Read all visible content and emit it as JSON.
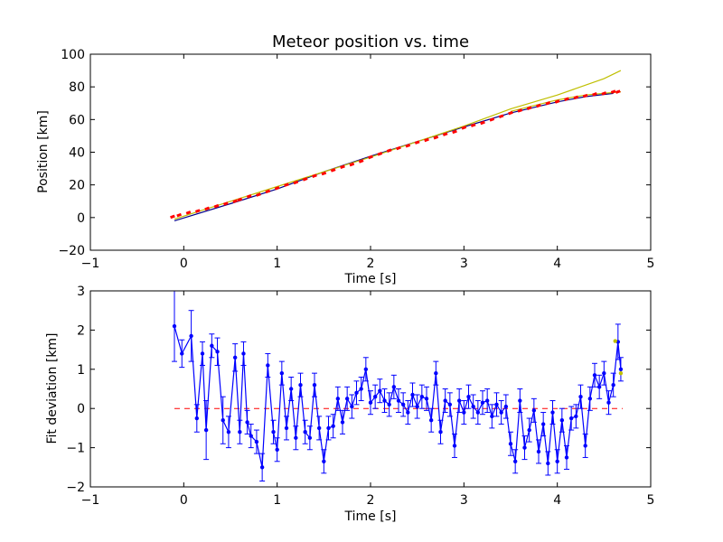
{
  "colors": {
    "fit_line": "#00008b",
    "data_marker": "#ff0000",
    "model_line": "#bfbf00",
    "residual_line": "#0000ff",
    "zero_line": "#ff0000",
    "axes": "#000000"
  },
  "chart_data": [
    {
      "type": "line",
      "title": "Meteor position vs. time",
      "xlabel": "Time [s]",
      "ylabel": "Position [km]",
      "xlim": [
        -1,
        5
      ],
      "ylim": [
        -20,
        100
      ],
      "xticks": [
        "−1",
        "0",
        "1",
        "2",
        "3",
        "4",
        "5"
      ],
      "yticks": [
        "−20",
        "0",
        "20",
        "40",
        "60",
        "80",
        "100"
      ],
      "grid": false,
      "series": [
        {
          "name": "",
          "kind": "line",
          "color": "#00008b",
          "x": [
            -0.1,
            0.5,
            1.0,
            1.5,
            2.0,
            2.5,
            3.0,
            3.5,
            4.0,
            4.3,
            4.6
          ],
          "y": [
            -2,
            8.5,
            17.5,
            28,
            37.5,
            46.5,
            55.5,
            64,
            70.8,
            74,
            76
          ]
        },
        {
          "name": "",
          "kind": "line",
          "color": "#bfbf00",
          "x": [
            -0.1,
            1.0,
            2.0,
            3.0,
            3.5,
            4.0,
            4.5,
            4.68
          ],
          "y": [
            -1,
            19,
            37,
            56,
            66.5,
            75,
            85,
            90
          ]
        },
        {
          "name": "",
          "kind": "line",
          "color": "#bfbf00",
          "x": [
            3.5,
            4.0,
            4.3,
            4.68
          ],
          "y": [
            65,
            72,
            75,
            77
          ]
        },
        {
          "name": "",
          "kind": "markers",
          "color": "#ff0000",
          "x": [
            -0.12,
            -0.05,
            0.05,
            0.15,
            0.25,
            0.35,
            0.45,
            0.55,
            0.6,
            0.7,
            0.8,
            0.9,
            1.0,
            1.1,
            1.2,
            1.3,
            1.4,
            1.5,
            1.6,
            1.7,
            1.8,
            1.9,
            2.0,
            2.1,
            2.2,
            2.3,
            2.4,
            2.5,
            2.6,
            2.7,
            2.8,
            2.9,
            3.0,
            3.1,
            3.2,
            3.3,
            3.4,
            3.5,
            3.6,
            3.7,
            3.8,
            3.9,
            4.0,
            4.1,
            4.2,
            4.3,
            4.4,
            4.5,
            4.6,
            4.65
          ],
          "y": [
            0.5,
            1.5,
            3,
            4,
            5.5,
            7,
            8.5,
            10,
            11,
            13,
            14,
            16,
            18,
            20,
            21.5,
            23.5,
            25.5,
            27,
            29,
            31,
            32.5,
            34.5,
            37,
            39,
            41,
            42.5,
            44,
            46,
            47.5,
            49,
            51,
            52.5,
            55,
            56.5,
            58,
            60,
            62,
            64,
            65.5,
            67,
            68.5,
            70,
            71,
            72.5,
            73.5,
            74.5,
            75.5,
            76,
            77,
            77
          ]
        }
      ]
    },
    {
      "type": "line",
      "title": "",
      "xlabel": "Time [s]",
      "ylabel": "Fit deviation [km]",
      "xlim": [
        -1,
        5
      ],
      "ylim": [
        -2,
        3
      ],
      "xticks": [
        "−1",
        "0",
        "1",
        "2",
        "3",
        "4",
        "5"
      ],
      "yticks": [
        "−2",
        "−1",
        "0",
        "1",
        "2",
        "3"
      ],
      "grid": false,
      "zero_line": {
        "x": [
          -0.1,
          4.7
        ],
        "y": 0,
        "color": "#ff0000",
        "style": "dashed"
      },
      "series": [
        {
          "name": "",
          "kind": "errorbar",
          "color": "#0000ff",
          "x": [
            -0.1,
            -0.02,
            0.08,
            0.14,
            0.2,
            0.24,
            0.3,
            0.36,
            0.42,
            0.48,
            0.55,
            0.6,
            0.64,
            0.68,
            0.72,
            0.78,
            0.84,
            0.9,
            0.96,
            1.0,
            1.05,
            1.1,
            1.15,
            1.2,
            1.25,
            1.3,
            1.35,
            1.4,
            1.45,
            1.5,
            1.55,
            1.6,
            1.65,
            1.7,
            1.75,
            1.8,
            1.85,
            1.9,
            1.95,
            2.0,
            2.05,
            2.1,
            2.15,
            2.2,
            2.25,
            2.3,
            2.35,
            2.4,
            2.45,
            2.5,
            2.55,
            2.6,
            2.65,
            2.7,
            2.75,
            2.8,
            2.85,
            2.9,
            2.95,
            3.0,
            3.05,
            3.1,
            3.15,
            3.2,
            3.25,
            3.3,
            3.35,
            3.4,
            3.45,
            3.5,
            3.55,
            3.6,
            3.65,
            3.7,
            3.75,
            3.8,
            3.85,
            3.9,
            3.95,
            4.0,
            4.05,
            4.1,
            4.15,
            4.2,
            4.25,
            4.3,
            4.35,
            4.4,
            4.45,
            4.5,
            4.55,
            4.6,
            4.65,
            4.68
          ],
          "y": [
            2.1,
            1.4,
            1.85,
            -0.25,
            1.4,
            -0.55,
            1.6,
            1.45,
            -0.3,
            -0.6,
            1.3,
            -0.6,
            1.4,
            -0.35,
            -0.7,
            -0.85,
            -1.5,
            1.1,
            -0.6,
            -1.05,
            0.9,
            -0.5,
            0.5,
            -0.75,
            0.6,
            -0.6,
            -0.75,
            0.6,
            -0.5,
            -1.35,
            -0.5,
            -0.45,
            0.25,
            -0.35,
            0.25,
            0.05,
            0.4,
            0.5,
            1.0,
            0.15,
            0.3,
            0.45,
            0.2,
            0.1,
            0.55,
            0.2,
            0.1,
            -0.1,
            0.35,
            0.05,
            0.3,
            0.25,
            -0.3,
            0.9,
            -0.6,
            0.2,
            0.1,
            -0.95,
            0.2,
            -0.1,
            0.3,
            0.05,
            -0.1,
            0.15,
            0.2,
            -0.2,
            0.1,
            -0.1,
            0.05,
            -0.9,
            -1.35,
            0.2,
            -1.0,
            -0.55,
            -0.05,
            -1.1,
            -0.4,
            -1.4,
            -0.1,
            -1.35,
            -0.3,
            -1.25,
            -0.25,
            -0.2,
            0.3,
            -0.95,
            0.25,
            0.85,
            0.55,
            0.9,
            0.15,
            0.6,
            1.7,
            1.0
          ],
          "yerr": [
            0.9,
            0.35,
            0.65,
            0.35,
            0.3,
            0.75,
            0.3,
            0.35,
            0.6,
            0.4,
            0.35,
            0.3,
            0.3,
            0.3,
            0.3,
            0.3,
            0.35,
            0.3,
            0.3,
            0.3,
            0.3,
            0.3,
            0.3,
            0.3,
            0.3,
            0.3,
            0.3,
            0.3,
            0.3,
            0.3,
            0.3,
            0.3,
            0.3,
            0.3,
            0.3,
            0.3,
            0.3,
            0.3,
            0.3,
            0.3,
            0.3,
            0.3,
            0.3,
            0.3,
            0.3,
            0.3,
            0.3,
            0.3,
            0.3,
            0.3,
            0.3,
            0.3,
            0.3,
            0.3,
            0.3,
            0.3,
            0.3,
            0.3,
            0.3,
            0.3,
            0.3,
            0.3,
            0.3,
            0.3,
            0.3,
            0.3,
            0.3,
            0.3,
            0.3,
            0.3,
            0.3,
            0.3,
            0.3,
            0.3,
            0.3,
            0.3,
            0.3,
            0.3,
            0.3,
            0.3,
            0.3,
            0.3,
            0.3,
            0.3,
            0.3,
            0.3,
            0.3,
            0.3,
            0.3,
            0.3,
            0.3,
            0.3,
            0.45,
            0.3
          ]
        },
        {
          "name": "",
          "kind": "markers",
          "color": "#bfbf00",
          "x": [
            4.62,
            4.68
          ],
          "y": [
            1.72,
            0.9
          ]
        }
      ]
    }
  ]
}
